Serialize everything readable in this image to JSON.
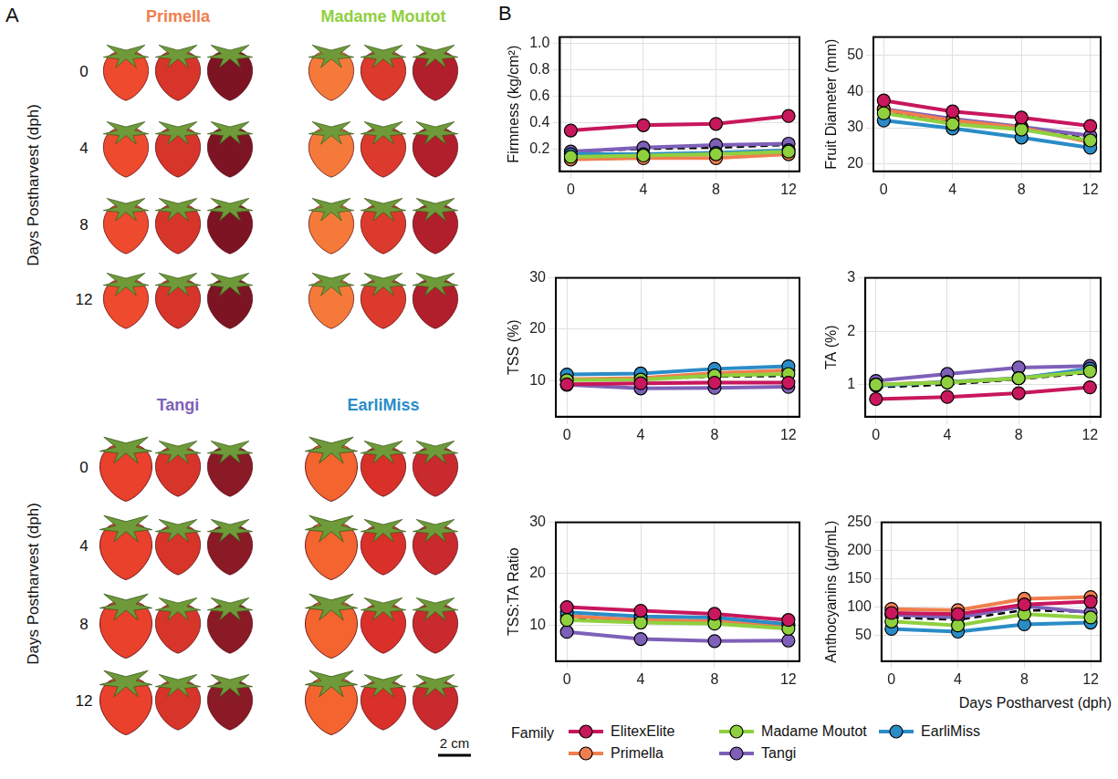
{
  "panel_a": {
    "letter": "A",
    "y_label": "Days Postharvest (dph)",
    "days": [
      0,
      4,
      8,
      12
    ],
    "groups": [
      [
        {
          "name": "Primella",
          "color": "#f07e4e"
        },
        {
          "name": "Madame Moutot",
          "color": "#8fd03f"
        }
      ],
      [
        {
          "name": "Tangi",
          "color": "#7e60b8"
        },
        {
          "name": "EarliMiss",
          "color": "#2a8cc7"
        }
      ]
    ],
    "scale_bar": "2 cm"
  },
  "panel_b": {
    "letter": "B",
    "x_label": "Days Postharvest (dph)",
    "legend_title": "Family",
    "legend": "bottom"
  },
  "chart_data": [
    {
      "type": "line",
      "y_label": "Firmness (kg/cm²)",
      "x": [
        0,
        4,
        8,
        12
      ],
      "xlim": [
        -0.6,
        12.6
      ],
      "xticks": [
        0,
        4,
        8,
        12
      ],
      "ylim": [
        0.03,
        1.05
      ],
      "yticks": [
        0.2,
        0.4,
        0.6,
        0.8,
        {
          "value": 1,
          "label": "1.0"
        }
      ],
      "grid": true,
      "series": [
        {
          "name": "ElitexElite",
          "color": "#c8175d",
          "marker": "circle",
          "line_style": "solid",
          "values": [
            0.34,
            0.38,
            0.39,
            0.45
          ]
        },
        {
          "name": "Madame Moutot",
          "color": "#8fd03f",
          "marker": "circle",
          "line_style": "solid",
          "values": [
            0.14,
            0.15,
            0.16,
            0.18
          ]
        },
        {
          "name": "EarliMiss",
          "color": "#2a8cc7",
          "marker": "circle",
          "line_style": "solid",
          "values": [
            0.16,
            0.16,
            0.17,
            0.19
          ]
        },
        {
          "name": "Primella",
          "color": "#f07e4e",
          "marker": "circle",
          "line_style": "solid",
          "values": [
            0.12,
            0.13,
            0.13,
            0.16
          ]
        },
        {
          "name": "Tangi",
          "color": "#7e60b8",
          "marker": "circle",
          "line_style": "solid",
          "values": [
            0.18,
            0.21,
            0.23,
            0.24
          ]
        },
        {
          "color": "#000000",
          "marker": "none",
          "line_style": "dashed",
          "values": [
            0.18,
            0.2,
            0.21,
            0.23
          ]
        }
      ]
    },
    {
      "type": "line",
      "y_label": "Fruit Diameter (mm)",
      "x": [
        0,
        4,
        8,
        12
      ],
      "xlim": [
        -0.6,
        12.6
      ],
      "xticks": [
        0,
        4,
        8,
        12
      ],
      "ylim": [
        18,
        55
      ],
      "yticks": [
        20,
        30,
        40,
        50
      ],
      "grid": true,
      "series": [
        {
          "name": "ElitexElite",
          "color": "#c8175d",
          "marker": "circle",
          "line_style": "solid",
          "values": [
            37.5,
            34.5,
            32.8,
            30.5
          ]
        },
        {
          "name": "Madame Moutot",
          "color": "#8fd03f",
          "marker": "circle",
          "line_style": "solid",
          "values": [
            34,
            31,
            29.5,
            26.5
          ]
        },
        {
          "name": "EarliMiss",
          "color": "#2a8cc7",
          "marker": "circle",
          "line_style": "solid",
          "values": [
            32,
            29.8,
            27.3,
            24.5
          ]
        },
        {
          "name": "Primella",
          "color": "#f07e4e",
          "marker": "circle",
          "line_style": "solid",
          "values": [
            35,
            32,
            30,
            26
          ]
        },
        {
          "name": "Tangi",
          "color": "#7e60b8",
          "marker": "circle",
          "line_style": "solid",
          "values": [
            35.2,
            32.5,
            30.3,
            27.8
          ]
        },
        {
          "color": "#000000",
          "marker": "none",
          "line_style": "dashed",
          "values": [
            34.5,
            31.8,
            29.8,
            27
          ]
        }
      ]
    },
    {
      "type": "line",
      "y_label": "TSS (%)",
      "x": [
        0,
        4,
        8,
        12
      ],
      "xlim": [
        -0.6,
        12.6
      ],
      "xticks": [
        0,
        4,
        8,
        12
      ],
      "ylim": [
        3,
        30
      ],
      "yticks": [
        10,
        20,
        30
      ],
      "grid": true,
      "series": [
        {
          "name": "ElitexElite",
          "color": "#c8175d",
          "marker": "circle",
          "line_style": "solid",
          "values": [
            9.3,
            9.5,
            9.6,
            9.6
          ]
        },
        {
          "name": "Madame Moutot",
          "color": "#8fd03f",
          "marker": "circle",
          "line_style": "solid",
          "values": [
            10.1,
            10.2,
            11,
            11.3
          ]
        },
        {
          "name": "EarliMiss",
          "color": "#2a8cc7",
          "marker": "circle",
          "line_style": "solid",
          "values": [
            11.2,
            11.4,
            12.3,
            12.8
          ]
        },
        {
          "name": "Primella",
          "color": "#f07e4e",
          "marker": "circle",
          "line_style": "solid",
          "values": [
            10.3,
            10.5,
            11.5,
            12
          ]
        },
        {
          "name": "Tangi",
          "color": "#7e60b8",
          "marker": "circle",
          "line_style": "solid",
          "values": [
            9.2,
            8.5,
            8.6,
            8.8
          ]
        },
        {
          "color": "#000000",
          "marker": "none",
          "line_style": "dashed",
          "values": [
            10.3,
            10.3,
            10.8,
            10.9
          ]
        }
      ]
    },
    {
      "type": "line",
      "y_label": "TA (%)",
      "x": [
        0,
        4,
        8,
        12
      ],
      "xlim": [
        -0.6,
        12.6
      ],
      "xticks": [
        0,
        4,
        8,
        12
      ],
      "ylim": [
        0.4,
        3
      ],
      "yticks": [
        1,
        2,
        3
      ],
      "grid": true,
      "series": [
        {
          "name": "ElitexElite",
          "color": "#c8175d",
          "marker": "circle",
          "line_style": "solid",
          "values": [
            0.73,
            0.77,
            0.84,
            0.95
          ]
        },
        {
          "name": "Madame Moutot",
          "color": "#8fd03f",
          "marker": "circle",
          "line_style": "solid",
          "values": [
            1.0,
            1.04,
            1.12,
            1.25
          ]
        },
        {
          "name": "EarliMiss",
          "color": "#2a8cc7",
          "marker": "circle",
          "line_style": "solid",
          "values": [
            0.98,
            1.05,
            1.12,
            1.3
          ]
        },
        {
          "name": "Primella",
          "color": "#f07e4e",
          "marker": "circle",
          "line_style": "solid",
          "values": [
            1.0,
            1.05,
            1.12,
            1.28
          ]
        },
        {
          "name": "Tangi",
          "color": "#7e60b8",
          "marker": "circle",
          "line_style": "solid",
          "values": [
            1.07,
            1.2,
            1.32,
            1.35
          ]
        },
        {
          "color": "#000000",
          "marker": "none",
          "line_style": "dashed",
          "values": [
            0.95,
            1.0,
            1.1,
            1.22
          ]
        }
      ]
    },
    {
      "type": "line",
      "y_label": "TSS:TA Ratio",
      "x": [
        0,
        4,
        8,
        12
      ],
      "xlim": [
        -0.6,
        12.6
      ],
      "xticks": [
        0,
        4,
        8,
        12
      ],
      "ylim": [
        3,
        30
      ],
      "yticks": [
        10,
        20,
        30
      ],
      "grid": true,
      "series": [
        {
          "name": "ElitexElite",
          "color": "#c8175d",
          "marker": "circle",
          "line_style": "solid",
          "values": [
            13.5,
            12.8,
            12.2,
            11
          ]
        },
        {
          "name": "Madame Moutot",
          "color": "#8fd03f",
          "marker": "circle",
          "line_style": "solid",
          "values": [
            11,
            10.5,
            10.3,
            9.3
          ]
        },
        {
          "name": "EarliMiss",
          "color": "#2a8cc7",
          "marker": "circle",
          "line_style": "solid",
          "values": [
            12.5,
            11.7,
            11.5,
            10.2
          ]
        },
        {
          "name": "Primella",
          "color": "#f07e4e",
          "marker": "circle",
          "line_style": "solid",
          "values": [
            11.8,
            11,
            10.8,
            9.8
          ]
        },
        {
          "name": "Tangi",
          "color": "#7e60b8",
          "marker": "circle",
          "line_style": "solid",
          "values": [
            8.7,
            7.3,
            6.9,
            7
          ]
        },
        {
          "color": "#000000",
          "marker": "none",
          "line_style": "dashed",
          "values": [
            11.3,
            10.8,
            10.3,
            9.5
          ]
        }
      ]
    },
    {
      "type": "line",
      "y_label": "Anthocyanins (μg/mL)",
      "x": [
        0,
        4,
        8,
        12
      ],
      "xlim": [
        -0.6,
        12.6
      ],
      "xticks": [
        0,
        4,
        8,
        12
      ],
      "ylim": [
        5,
        250
      ],
      "yticks": [
        50,
        100,
        150,
        200,
        250
      ],
      "grid": true,
      "series": [
        {
          "name": "ElitexElite",
          "color": "#c8175d",
          "marker": "circle",
          "line_style": "solid",
          "values": [
            90,
            88,
            105,
            110
          ]
        },
        {
          "name": "Madame Moutot",
          "color": "#8fd03f",
          "marker": "circle",
          "line_style": "solid",
          "values": [
            75,
            68,
            88,
            82
          ]
        },
        {
          "name": "EarliMiss",
          "color": "#2a8cc7",
          "marker": "circle",
          "line_style": "solid",
          "values": [
            62,
            57,
            70,
            73
          ]
        },
        {
          "name": "Primella",
          "color": "#f07e4e",
          "marker": "circle",
          "line_style": "solid",
          "values": [
            97,
            95,
            115,
            118
          ]
        },
        {
          "name": "Tangi",
          "color": "#7e60b8",
          "marker": "circle",
          "line_style": "solid",
          "values": [
            87,
            82,
            102,
            91
          ]
        },
        {
          "color": "#000000",
          "marker": "none",
          "line_style": "dashed",
          "values": [
            82,
            78,
            95,
            92
          ]
        }
      ]
    }
  ]
}
